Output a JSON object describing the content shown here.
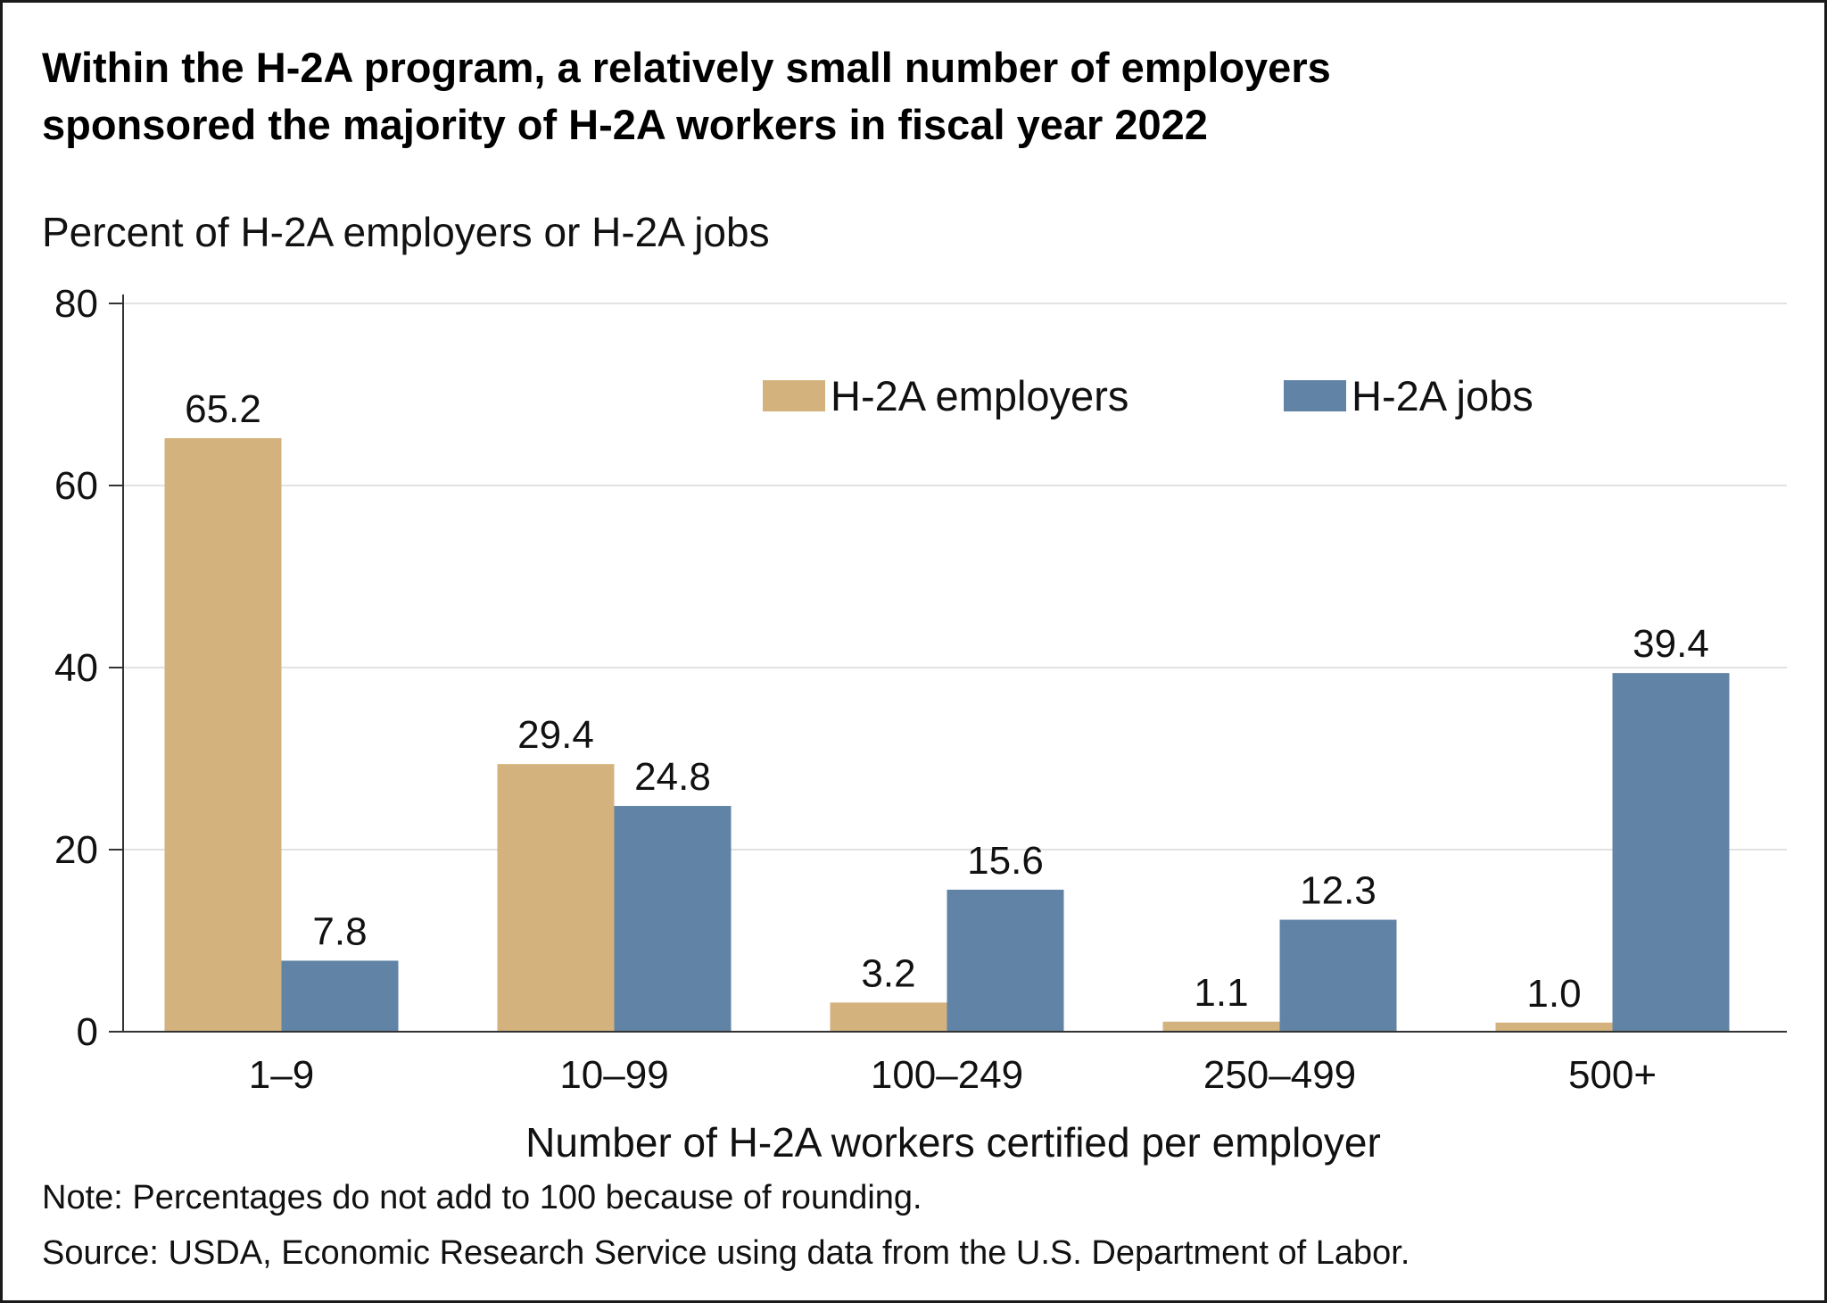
{
  "header": {
    "title_line1": "Within the H-2A program, a relatively small number of employers",
    "title_line2": "sponsored the majority of H-2A workers in fiscal year 2022"
  },
  "footer": {
    "note": "Note: Percentages do not add to 100 because of rounding.",
    "source": "Source: USDA, Economic Research Service using data from the U.S. Department of Labor."
  },
  "chart_data": {
    "type": "bar",
    "title": "Within the H-2A program, a relatively small number of employers sponsored the majority of H-2A workers in fiscal year 2022",
    "ylabel": "Percent of H-2A employers or H-2A jobs",
    "xlabel": "Number of H-2A workers certified per employer",
    "categories": [
      "1–9",
      "10–99",
      "100–249",
      "250–499",
      "500+"
    ],
    "series": [
      {
        "name": "H-2A employers",
        "color": "#d4b27e",
        "values": [
          65.2,
          29.4,
          3.2,
          1.1,
          1.0
        ]
      },
      {
        "name": "H-2A jobs",
        "color": "#6183a6",
        "values": [
          7.8,
          24.8,
          15.6,
          12.3,
          39.4
        ]
      }
    ],
    "ylim": [
      0,
      80
    ],
    "yticks": [
      0,
      20,
      40,
      60,
      80
    ],
    "grid": true,
    "legend_position": "top-right"
  }
}
